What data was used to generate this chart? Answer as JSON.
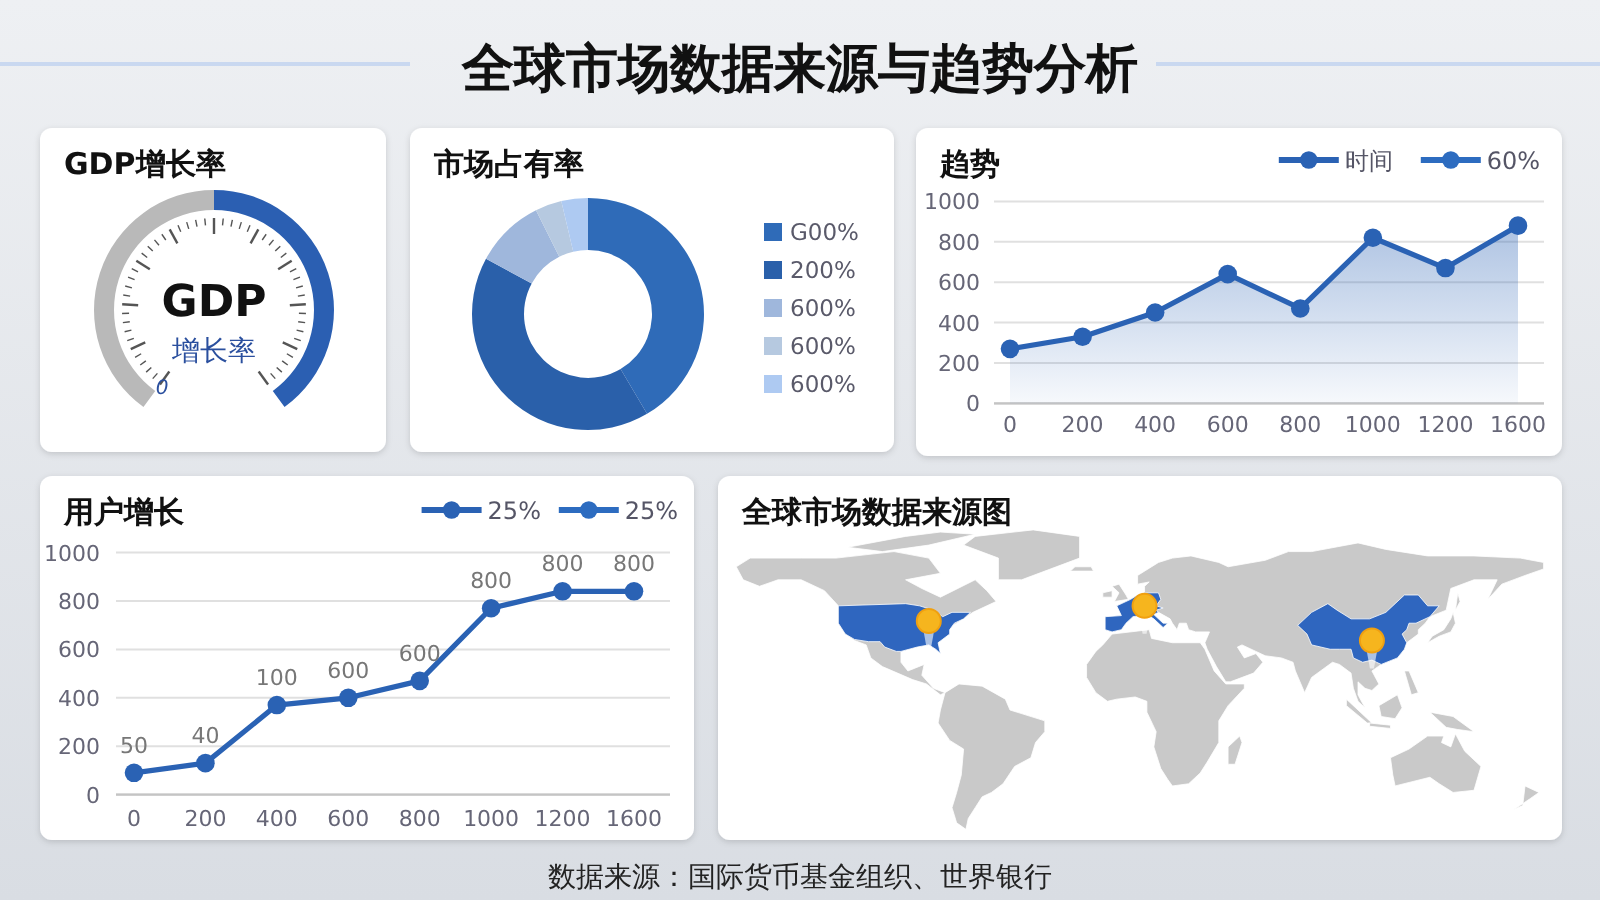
{
  "chart_data": [
    {
      "type": "other",
      "title": "全球市场数据来源与趋势分析",
      "annotations": [
        "数据来源：国际货币基金组织、世界银行"
      ]
    },
    {
      "type": "donut",
      "title": "GDP增长率",
      "categories": [
        null,
        null
      ],
      "values": [
        50,
        50
      ],
      "colors": [
        "#b9b9b9",
        "#2b5fb2"
      ],
      "annotations": [
        "GDP",
        "增长率",
        "0"
      ]
    },
    {
      "type": "donut",
      "title": "市场占有率",
      "categories": [
        "G00%",
        "200%",
        "600%",
        "600%",
        "600%"
      ],
      "values": [
        41.5,
        41.4,
        9.7,
        3.7,
        3.7
      ],
      "colors": [
        "#2f6bb8",
        "#2a60aa",
        "#9fb7dc",
        "#b6c9e0",
        "#aecaf2"
      ],
      "legend": "right"
    },
    {
      "type": "area",
      "title": "趋势",
      "categories": [
        "0",
        "200",
        "400",
        "600",
        "800",
        "1000",
        "1200",
        "1600"
      ],
      "series": [
        {
          "name": "时间",
          "color": "#2a62b4",
          "values": [
            270,
            330,
            450,
            640,
            470,
            820,
            670,
            880
          ]
        },
        {
          "name": "60%",
          "color": "#2d6cc0",
          "values": [
            null,
            null,
            null,
            null,
            null,
            null,
            null,
            null
          ]
        }
      ],
      "ylim": [
        0,
        1000
      ],
      "yticks": [
        0,
        200,
        400,
        600,
        800,
        1000
      ],
      "grid": "y",
      "legend": "top right",
      "marker": "circle"
    },
    {
      "type": "line",
      "title": "用户增长",
      "categories": [
        "0",
        "200",
        "400",
        "600",
        "800",
        "1000",
        "1200",
        "1600"
      ],
      "series": [
        {
          "name": "25%",
          "color": "#2a62b4",
          "values": [
            90,
            130,
            370,
            400,
            470,
            770,
            840,
            840
          ]
        },
        {
          "name": "25%",
          "color": "#2d6cc0",
          "values": [
            null,
            null,
            null,
            null,
            null,
            null,
            null,
            null
          ]
        }
      ],
      "ylim": [
        0,
        1000
      ],
      "yticks": [
        0,
        200,
        400,
        600,
        800,
        1000
      ],
      "grid": "y",
      "legend": "top right",
      "marker": "circle",
      "annotations": [
        {
          "text": "50",
          "x": "0",
          "y": 90
        },
        {
          "text": "40",
          "x": "200",
          "y": 130
        },
        {
          "text": "100",
          "x": "400",
          "y": 370
        },
        {
          "text": "600",
          "x": "600",
          "y": 400
        },
        {
          "text": "600",
          "x": "800",
          "y": 470
        },
        {
          "text": "800",
          "x": "1000",
          "y": 770
        },
        {
          "text": "800",
          "x": "1200",
          "y": 840
        },
        {
          "text": "800",
          "x": "1600",
          "y": 840
        }
      ]
    },
    {
      "type": "other",
      "title": "全球市场数据来源图"
    }
  ]
}
